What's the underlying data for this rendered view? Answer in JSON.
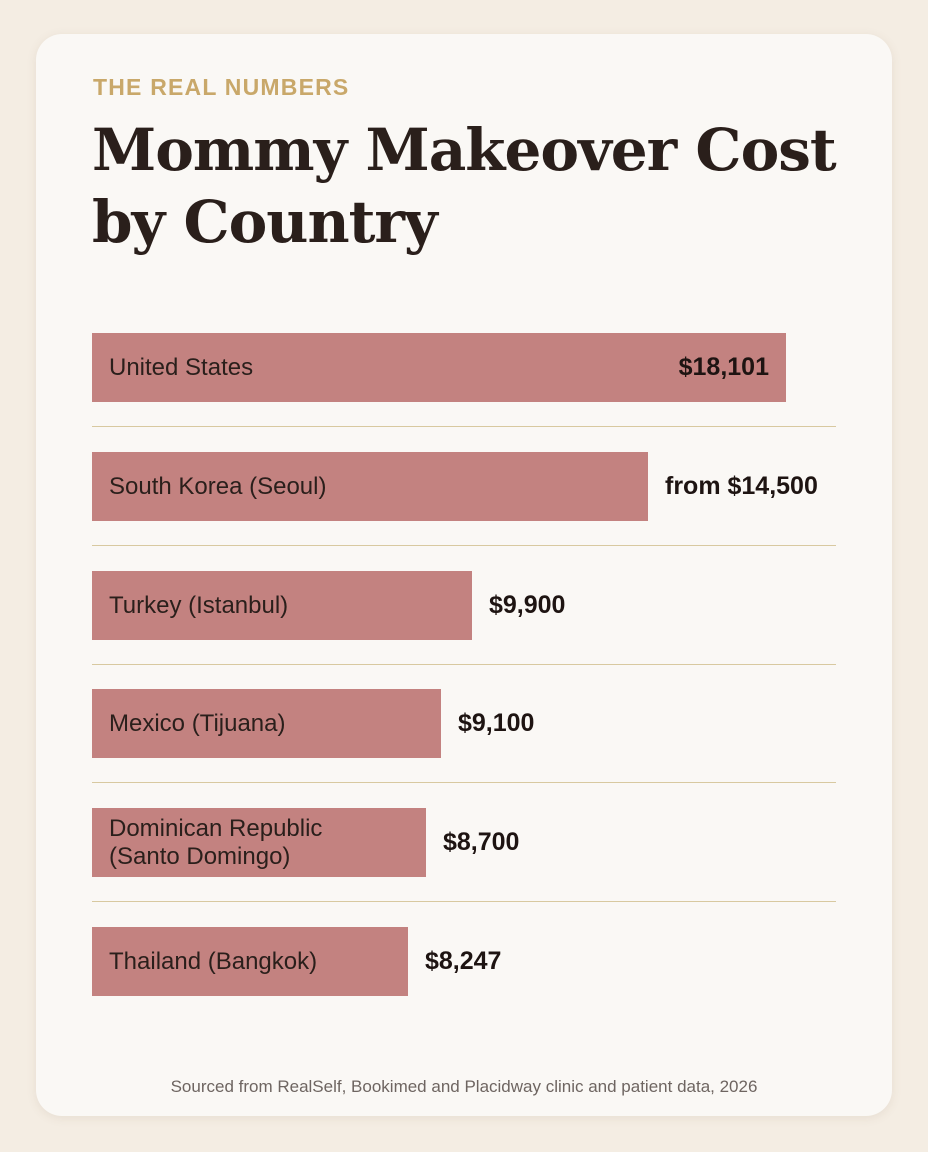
{
  "eyebrow": "THE REAL NUMBERS",
  "title": "Mommy Makeover Cost by Country",
  "source": "Sourced from RealSelf, Bookimed and Placidway clinic and patient data, 2026",
  "colors": {
    "bar": "#c38280",
    "accent": "#c9a86a",
    "divider": "#d8c9a0",
    "title": "#2a1f1b"
  },
  "chart_data": {
    "type": "bar",
    "orientation": "horizontal",
    "categories": [
      "United States",
      "South Korea (Seoul)",
      "Turkey (Istanbul)",
      "Mexico (Tijuana)",
      "Dominican Republic\n(Santo Domingo)",
      "Thailand (Bangkok)"
    ],
    "values": [
      18101,
      14500,
      9900,
      9100,
      8700,
      8247
    ],
    "value_labels": [
      "$18,101",
      "from $14,500",
      "$9,900",
      "$9,100",
      "$8,700",
      "$8,247"
    ],
    "unit": "USD",
    "xlim": [
      0,
      19400
    ],
    "grid": false,
    "legend": "none"
  }
}
